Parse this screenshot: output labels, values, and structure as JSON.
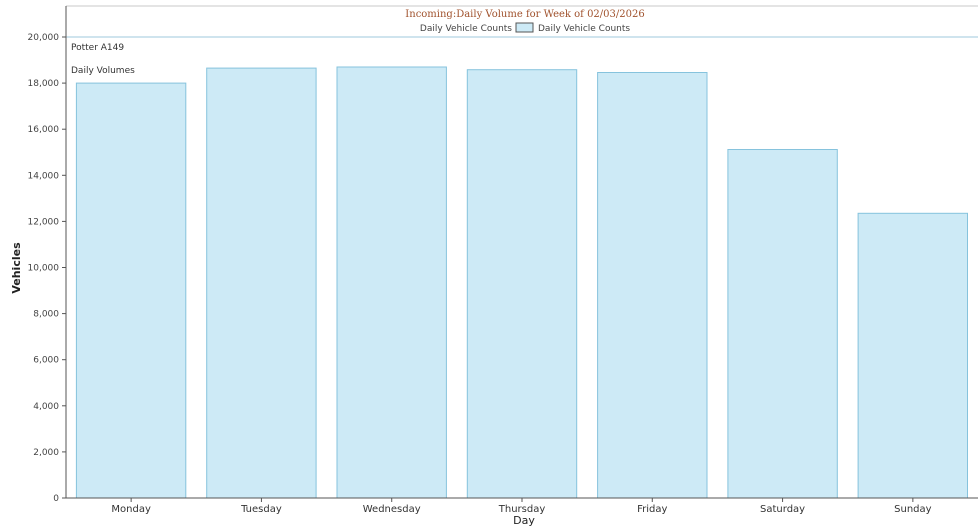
{
  "chart_data": {
    "type": "bar",
    "title": "Incoming:Daily Volume for Week of 02/03/2026",
    "xlabel": "Day",
    "ylabel": "Vehicles",
    "categories": [
      "Monday",
      "Tuesday",
      "Wednesday",
      "Thursday",
      "Friday",
      "Saturday",
      "Sunday"
    ],
    "series": [
      {
        "name": "Daily Vehicle Counts",
        "values": [
          18000,
          18650,
          18700,
          18580,
          18460,
          15120,
          12350
        ]
      }
    ],
    "ylim": [
      0,
      20000
    ],
    "yticks": [
      0,
      2000,
      4000,
      6000,
      8000,
      10000,
      12000,
      14000,
      16000,
      18000,
      20000
    ],
    "ytick_labels": [
      "0",
      "2,000",
      "4,000",
      "6,000",
      "8,000",
      "10,000",
      "12,000",
      "14,000",
      "16,000",
      "18,000",
      "20,000"
    ],
    "legend": {
      "label_left": "Daily Vehicle Counts",
      "label_right": "Daily Vehicle Counts",
      "position": "top"
    },
    "annotations": [
      "Potter A149",
      "Daily Volumes"
    ],
    "grid": false,
    "colors": {
      "bar_fill": "#cdeaf6",
      "bar_stroke": "#86c3dd",
      "title": "#a0522d",
      "axis": "#555555"
    }
  }
}
